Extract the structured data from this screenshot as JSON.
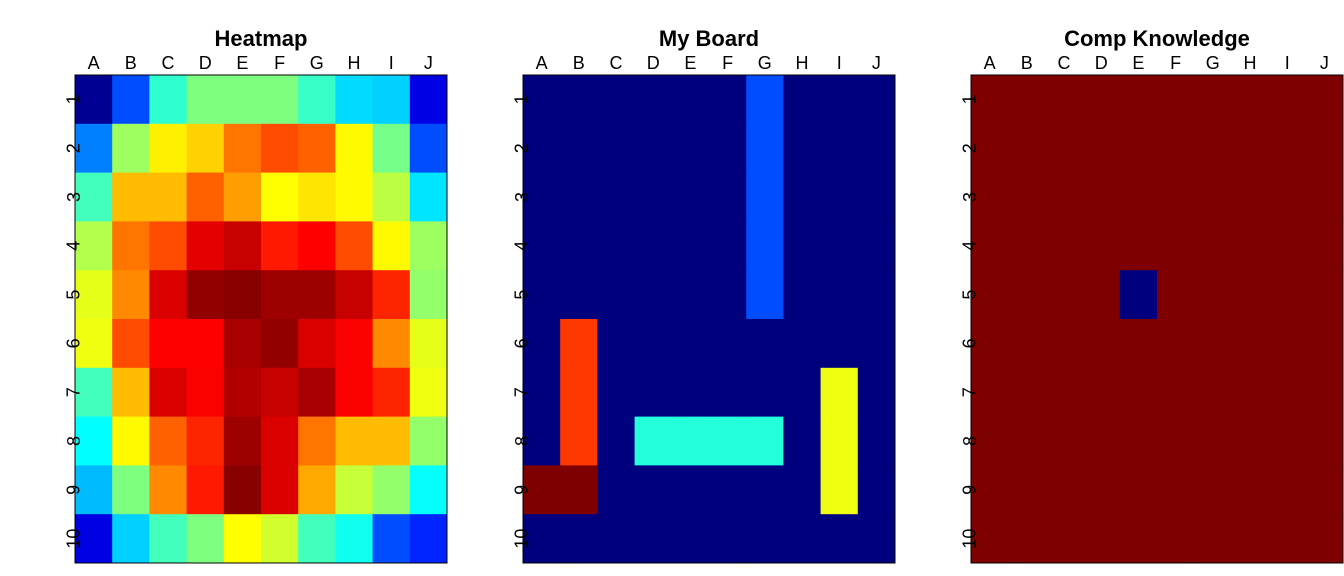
{
  "chart_data": [
    {
      "type": "heatmap",
      "title": "Heatmap",
      "colormap": [
        "#00007F",
        "#0000FF",
        "#007FFF",
        "#00FFFF",
        "#7FFF7F",
        "#FFFF00",
        "#FF7F00",
        "#FF0000",
        "#7F0000"
      ],
      "x": [
        "A",
        "B",
        "C",
        "D",
        "E",
        "F",
        "G",
        "H",
        "I",
        "J"
      ],
      "y": [
        "1",
        "2",
        "3",
        "4",
        "5",
        "6",
        "7",
        "8",
        "9",
        "10"
      ],
      "values": [
        [
          0.02,
          0.2,
          0.42,
          0.5,
          0.5,
          0.5,
          0.43,
          0.34,
          0.33,
          0.1
        ],
        [
          0.25,
          0.53,
          0.64,
          0.67,
          0.76,
          0.8,
          0.78,
          0.63,
          0.49,
          0.2
        ],
        [
          0.44,
          0.69,
          0.69,
          0.78,
          0.72,
          0.625,
          0.65,
          0.63,
          0.56,
          0.35
        ],
        [
          0.55,
          0.76,
          0.8,
          0.9,
          0.93,
          0.85,
          0.875,
          0.8,
          0.63,
          0.53
        ],
        [
          0.6,
          0.74,
          0.91,
          0.98,
          0.99,
          0.97,
          0.97,
          0.93,
          0.84,
          0.52
        ],
        [
          0.61,
          0.8,
          0.875,
          0.875,
          0.96,
          0.98,
          0.91,
          0.88,
          0.74,
          0.6
        ],
        [
          0.44,
          0.69,
          0.91,
          0.88,
          0.95,
          0.93,
          0.96,
          0.88,
          0.84,
          0.61
        ],
        [
          0.375,
          0.63,
          0.78,
          0.84,
          0.97,
          0.91,
          0.76,
          0.69,
          0.69,
          0.52
        ],
        [
          0.31,
          0.5,
          0.74,
          0.85,
          0.99,
          0.91,
          0.71,
          0.57,
          0.52,
          0.38
        ],
        [
          0.1,
          0.33,
          0.44,
          0.5,
          0.625,
          0.58,
          0.44,
          0.39,
          0.2,
          0.16
        ]
      ]
    },
    {
      "type": "heatmap",
      "title": "My Board",
      "colormap": [
        "#00007F",
        "#0000FF",
        "#007FFF",
        "#00FFFF",
        "#7FFF7F",
        "#FFFF00",
        "#FF7F00",
        "#FF0000",
        "#7F0000"
      ],
      "x": [
        "A",
        "B",
        "C",
        "D",
        "E",
        "F",
        "G",
        "H",
        "I",
        "J"
      ],
      "y": [
        "1",
        "2",
        "3",
        "4",
        "5",
        "6",
        "7",
        "8",
        "9",
        "10"
      ],
      "values": [
        [
          0,
          0,
          0,
          0,
          0,
          0,
          0.2,
          0,
          0,
          0
        ],
        [
          0,
          0,
          0,
          0,
          0,
          0,
          0.2,
          0,
          0,
          0
        ],
        [
          0,
          0,
          0,
          0,
          0,
          0,
          0.2,
          0,
          0,
          0
        ],
        [
          0,
          0,
          0,
          0,
          0,
          0,
          0.2,
          0,
          0,
          0
        ],
        [
          0,
          0,
          0,
          0,
          0,
          0,
          0.2,
          0,
          0,
          0
        ],
        [
          0,
          0.82,
          0,
          0,
          0,
          0,
          0,
          0,
          0,
          0
        ],
        [
          0,
          0.82,
          0,
          0,
          0,
          0,
          0,
          0,
          0.61,
          0
        ],
        [
          0,
          0.82,
          0,
          0.41,
          0.41,
          0.41,
          0.41,
          0,
          0.61,
          0
        ],
        [
          1,
          1,
          0,
          0,
          0,
          0,
          0,
          0,
          0.61,
          0
        ],
        [
          0,
          0,
          0,
          0,
          0,
          0,
          0,
          0,
          0,
          0
        ]
      ]
    },
    {
      "type": "heatmap",
      "title": "Comp Knowledge",
      "colormap": [
        "#00007F",
        "#0000FF",
        "#007FFF",
        "#00FFFF",
        "#7FFF7F",
        "#FFFF00",
        "#FF7F00",
        "#FF0000",
        "#7F0000"
      ],
      "x": [
        "A",
        "B",
        "C",
        "D",
        "E",
        "F",
        "G",
        "H",
        "I",
        "J"
      ],
      "y": [
        "1",
        "2",
        "3",
        "4",
        "5",
        "6",
        "7",
        "8",
        "9",
        "10"
      ],
      "values": [
        [
          1,
          1,
          1,
          1,
          1,
          1,
          1,
          1,
          1,
          1
        ],
        [
          1,
          1,
          1,
          1,
          1,
          1,
          1,
          1,
          1,
          1
        ],
        [
          1,
          1,
          1,
          1,
          1,
          1,
          1,
          1,
          1,
          1
        ],
        [
          1,
          1,
          1,
          1,
          1,
          1,
          1,
          1,
          1,
          1
        ],
        [
          1,
          1,
          1,
          1,
          0,
          1,
          1,
          1,
          1,
          1
        ],
        [
          1,
          1,
          1,
          1,
          1,
          1,
          1,
          1,
          1,
          1
        ],
        [
          1,
          1,
          1,
          1,
          1,
          1,
          1,
          1,
          1,
          1
        ],
        [
          1,
          1,
          1,
          1,
          1,
          1,
          1,
          1,
          1,
          1
        ],
        [
          1,
          1,
          1,
          1,
          1,
          1,
          1,
          1,
          1,
          1
        ],
        [
          1,
          1,
          1,
          1,
          1,
          1,
          1,
          1,
          1,
          1
        ]
      ]
    }
  ]
}
